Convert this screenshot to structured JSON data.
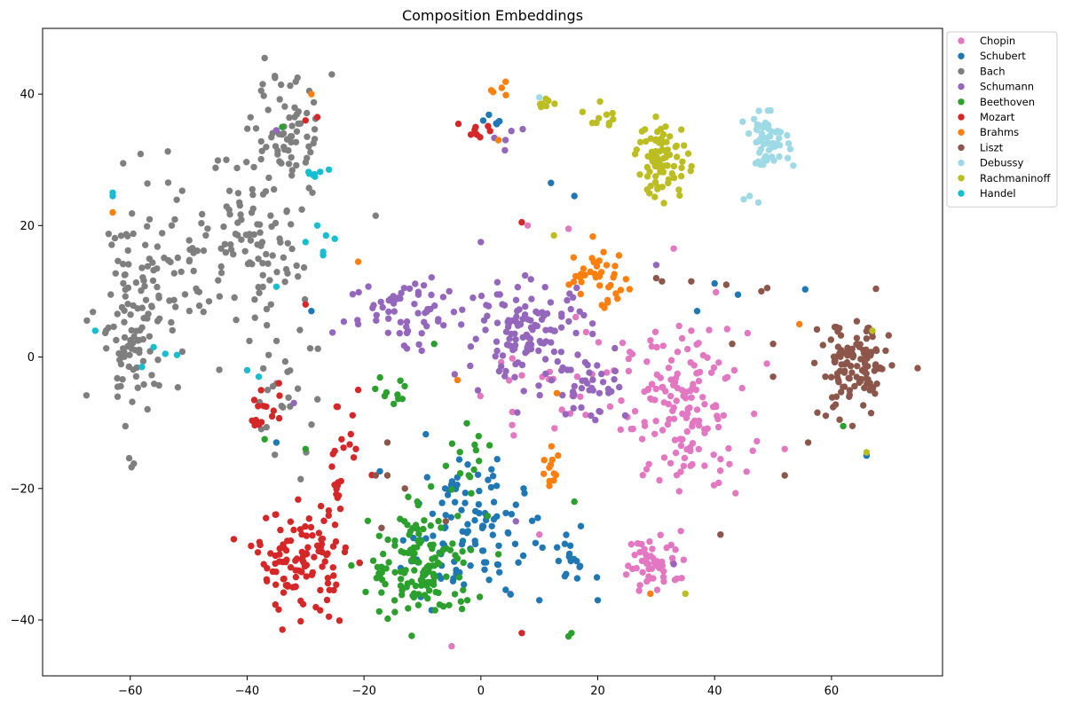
{
  "chart_data": {
    "type": "scatter",
    "title": "Composition Embeddings",
    "xlabel": "",
    "ylabel": "",
    "xlim": [
      -75,
      79
    ],
    "ylim": [
      -48.5,
      50
    ],
    "xticks": [
      -60,
      -40,
      -20,
      0,
      20,
      40,
      60
    ],
    "yticks": [
      -40,
      -20,
      0,
      20,
      40
    ],
    "grid": false,
    "legend_position": "outside-top-right",
    "series": [
      {
        "name": "Chopin",
        "color": "#e377c2",
        "clusters": [
          {
            "center": [
              35,
              -8
            ],
            "spread": [
              7,
              8
            ],
            "count": 150
          },
          {
            "center": [
              30,
              -31
            ],
            "spread": [
              4,
              3
            ],
            "count": 50
          },
          {
            "center": [
              12,
              -5
            ],
            "spread": [
              8,
              8
            ],
            "count": 25
          }
        ],
        "points": [
          [
            -5,
            -44
          ],
          [
            8,
            20
          ],
          [
            15,
            19.5
          ],
          [
            33,
            16.5
          ],
          [
            18,
            3.8
          ],
          [
            36,
            4
          ],
          [
            52,
            -14
          ],
          [
            10,
            -27
          ],
          [
            5,
            -36
          ]
        ]
      },
      {
        "name": "Schubert",
        "color": "#1f77b4",
        "clusters": [
          {
            "center": [
              -3,
              -26
            ],
            "spread": [
              7,
              7
            ],
            "count": 110
          },
          {
            "center": [
              15,
              -31
            ],
            "spread": [
              2.5,
              3
            ],
            "count": 18
          },
          {
            "center": [
              2,
              36
            ],
            "spread": [
              1.5,
              1
            ],
            "count": 6
          }
        ],
        "points": [
          [
            16,
            24.5
          ],
          [
            12,
            26.5
          ],
          [
            37,
            7
          ],
          [
            40,
            11.2
          ],
          [
            44,
            9.5
          ],
          [
            55.5,
            10.3
          ],
          [
            66,
            -15
          ],
          [
            -35,
            -13
          ],
          [
            -29,
            7
          ],
          [
            10,
            -37
          ],
          [
            20,
            -37
          ]
        ]
      },
      {
        "name": "Bach",
        "color": "#7f7f7f",
        "clusters": [
          {
            "center": [
              -60,
              5
            ],
            "spread": [
              4,
              11
            ],
            "count": 110
          },
          {
            "center": [
              -48,
              16
            ],
            "spread": [
              8,
              9
            ],
            "count": 80
          },
          {
            "center": [
              -33,
              33
            ],
            "spread": [
              4,
              6
            ],
            "count": 70
          },
          {
            "center": [
              -38,
              15
            ],
            "spread": [
              5,
              7
            ],
            "count": 60
          },
          {
            "center": [
              -34,
              -5
            ],
            "spread": [
              4,
              7
            ],
            "count": 25
          }
        ],
        "points": [
          [
            -37,
            45.5
          ],
          [
            -25.5,
            43
          ],
          [
            -18,
            21.5
          ]
        ]
      },
      {
        "name": "Schumann",
        "color": "#9467bd",
        "clusters": [
          {
            "center": [
              8,
              4
            ],
            "spread": [
              7,
              5
            ],
            "count": 120
          },
          {
            "center": [
              -12,
              7
            ],
            "spread": [
              7,
              4
            ],
            "count": 60
          },
          {
            "center": [
              18,
              -4
            ],
            "spread": [
              5,
              4
            ],
            "count": 40
          },
          {
            "center": [
              4,
              34
            ],
            "spread": [
              2,
              1
            ],
            "count": 5
          }
        ],
        "points": [
          [
            -35,
            34.5
          ],
          [
            33,
            -31.5
          ],
          [
            6,
            -25
          ],
          [
            -32,
            -7
          ],
          [
            0,
            17.5
          ],
          [
            -21,
            5
          ],
          [
            30,
            14
          ]
        ]
      },
      {
        "name": "Beethoven",
        "color": "#2ca02c",
        "clusters": [
          {
            "center": [
              -10,
              -32
            ],
            "spread": [
              6,
              6
            ],
            "count": 140
          },
          {
            "center": [
              -2,
              -16
            ],
            "spread": [
              3,
              3
            ],
            "count": 15
          },
          {
            "center": [
              -15,
              -6
            ],
            "spread": [
              3,
              2
            ],
            "count": 10
          }
        ],
        "points": [
          [
            15,
            -42.5
          ],
          [
            15.5,
            -42
          ],
          [
            -34,
            35
          ],
          [
            -37,
            -12.5
          ],
          [
            -30,
            -14
          ],
          [
            62,
            -10.5
          ],
          [
            16,
            -22
          ],
          [
            3,
            -30
          ],
          [
            -8,
            2
          ]
        ]
      },
      {
        "name": "Mozart",
        "color": "#d62728",
        "clusters": [
          {
            "center": [
              -31,
              -31
            ],
            "spread": [
              5,
              5
            ],
            "count": 110
          },
          {
            "center": [
              -37,
              -8
            ],
            "spread": [
              2,
              3
            ],
            "count": 15
          },
          {
            "center": [
              -24,
              -20
            ],
            "spread": [
              2,
              8
            ],
            "count": 25
          },
          {
            "center": [
              -1,
              35
            ],
            "spread": [
              1.5,
              1
            ],
            "count": 8
          }
        ],
        "points": [
          [
            -30,
            36
          ],
          [
            -28,
            36.5
          ],
          [
            -30,
            8
          ],
          [
            7,
            20.5
          ],
          [
            7,
            -42
          ],
          [
            -21,
            -5
          ],
          [
            -26,
            -39.5
          ]
        ]
      },
      {
        "name": "Brahms",
        "color": "#ff7f0e",
        "clusters": [
          {
            "center": [
              20,
              12
            ],
            "spread": [
              4,
              3
            ],
            "count": 40
          },
          {
            "center": [
              12,
              -17
            ],
            "spread": [
              1.5,
              2
            ],
            "count": 12
          },
          {
            "center": [
              4,
              40
            ],
            "spread": [
              1,
              1
            ],
            "count": 5
          }
        ],
        "points": [
          [
            -29,
            40
          ],
          [
            -63,
            22
          ],
          [
            -21,
            14.5
          ],
          [
            54.5,
            5
          ],
          [
            29,
            -36
          ],
          [
            -4,
            -3.5
          ],
          [
            13,
            -5.5
          ],
          [
            3,
            33
          ]
        ]
      },
      {
        "name": "Liszt",
        "color": "#8c564b",
        "clusters": [
          {
            "center": [
              64,
              -2
            ],
            "spread": [
              4,
              5
            ],
            "count": 120
          }
        ],
        "points": [
          [
            48,
            10
          ],
          [
            49,
            10.5
          ],
          [
            43,
            2
          ],
          [
            50,
            2
          ],
          [
            50,
            -3
          ],
          [
            52,
            -18
          ],
          [
            56,
            -13
          ],
          [
            41,
            -27
          ],
          [
            31,
            11.5
          ],
          [
            36,
            11.5
          ],
          [
            42,
            11
          ],
          [
            30,
            12
          ],
          [
            -16,
            -18
          ],
          [
            -18,
            -18
          ],
          [
            -13,
            -20
          ],
          [
            -6,
            -25
          ],
          [
            -16,
            -13
          ],
          [
            -17,
            -26
          ]
        ]
      },
      {
        "name": "Debussy",
        "color": "#9edae5",
        "clusters": [
          {
            "center": [
              49,
              33
            ],
            "spread": [
              2.5,
              2.5
            ],
            "count": 55
          }
        ],
        "points": [
          [
            45,
            24
          ],
          [
            47.5,
            23.5
          ],
          [
            46,
            24.5
          ],
          [
            10,
            39.5
          ]
        ]
      },
      {
        "name": "Rachmaninoff",
        "color": "#bcbd22",
        "clusters": [
          {
            "center": [
              31,
              30
            ],
            "spread": [
              3,
              4
            ],
            "count": 80
          },
          {
            "center": [
              22,
              37
            ],
            "spread": [
              2,
              1.5
            ],
            "count": 10
          },
          {
            "center": [
              11,
              38.5
            ],
            "spread": [
              1.5,
              0.6
            ],
            "count": 8
          }
        ],
        "points": [
          [
            12.5,
            18.5
          ],
          [
            35,
            -36
          ],
          [
            66,
            -14.5
          ],
          [
            67,
            4
          ]
        ]
      },
      {
        "name": "Handel",
        "color": "#17becf",
        "clusters": [
          {
            "center": [
              -28.5,
              28
            ],
            "spread": [
              1,
              0.6
            ],
            "count": 6
          }
        ],
        "points": [
          [
            -63,
            25
          ],
          [
            -63,
            24.5
          ],
          [
            -66,
            4
          ],
          [
            -58,
            -1.5
          ],
          [
            -56,
            1.5
          ],
          [
            -54,
            0.5
          ],
          [
            -52,
            0.3
          ],
          [
            -35,
            10.7
          ],
          [
            -40,
            -2
          ],
          [
            -38,
            -3
          ],
          [
            -30,
            17.5
          ],
          [
            -28,
            20
          ],
          [
            -26.5,
            18.5
          ],
          [
            -25,
            18
          ],
          [
            -27,
            16
          ],
          [
            -27,
            15.5
          ],
          [
            -26,
            28.5
          ]
        ]
      }
    ]
  }
}
